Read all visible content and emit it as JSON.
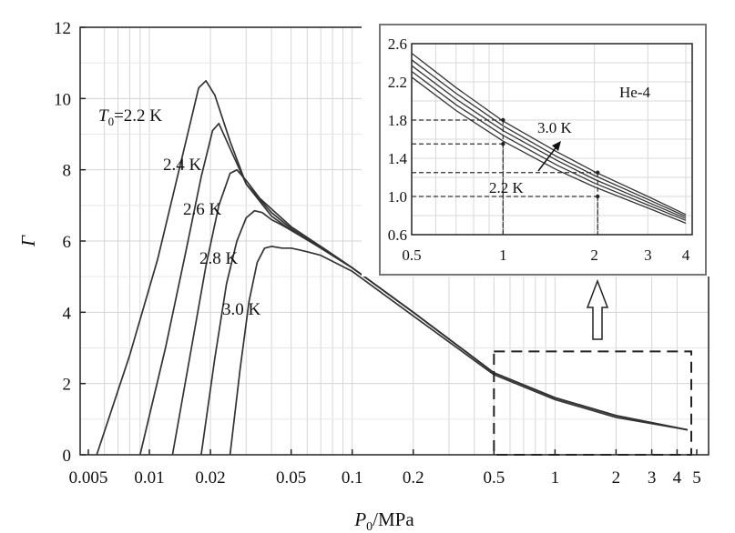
{
  "chart_data": [
    {
      "type": "line",
      "x_scale": "log",
      "xlabel_italic": "P",
      "xlabel_sub": "0",
      "xlabel_rest": "/MPa",
      "ylabel": "Γ",
      "xlim": [
        0.005,
        5
      ],
      "ylim": [
        0,
        12
      ],
      "grid": true,
      "x_ticks": [
        0.005,
        0.01,
        0.02,
        0.05,
        0.1,
        0.2,
        0.5,
        1,
        2,
        3,
        4,
        5
      ],
      "x_tick_labels": [
        "0.005",
        "0.01",
        "0.02",
        "0.05",
        "0.1",
        "0.2",
        "0.5",
        "1",
        "2",
        "3",
        "4",
        "5"
      ],
      "y_ticks": [
        0,
        2,
        4,
        6,
        8,
        10,
        12
      ],
      "y_tick_labels": [
        "0",
        "2",
        "4",
        "6",
        "8",
        "10",
        "12"
      ],
      "series": [
        {
          "name": "T0=2.2 K",
          "label_italic": "T",
          "label_sub": "0",
          "label_rest": "=2.2 K",
          "x": [
            0.0055,
            0.008,
            0.011,
            0.015,
            0.0175,
            0.019,
            0.021,
            0.025,
            0.03,
            0.04,
            0.05,
            0.07,
            0.1,
            0.2,
            0.5,
            1,
            2,
            4.5
          ],
          "y": [
            0,
            2.8,
            5.5,
            8.7,
            10.3,
            10.5,
            10.1,
            8.8,
            7.6,
            6.7,
            6.3,
            5.8,
            5.25,
            4.0,
            2.3,
            1.6,
            1.1,
            0.7
          ]
        },
        {
          "name": "2.4 K",
          "label_rest": "2.4 K",
          "x": [
            0.009,
            0.012,
            0.015,
            0.018,
            0.0205,
            0.022,
            0.025,
            0.03,
            0.04,
            0.05,
            0.07,
            0.1,
            0.2,
            0.5,
            1,
            2,
            4.5
          ],
          "y": [
            0,
            3.0,
            5.6,
            7.8,
            9.1,
            9.3,
            8.6,
            7.6,
            6.8,
            6.35,
            5.8,
            5.25,
            4.0,
            2.3,
            1.6,
            1.1,
            0.7
          ]
        },
        {
          "name": "2.6 K",
          "label_rest": "2.6 K",
          "x": [
            0.013,
            0.016,
            0.019,
            0.022,
            0.025,
            0.027,
            0.03,
            0.035,
            0.04,
            0.05,
            0.07,
            0.1,
            0.2,
            0.5,
            1,
            2,
            4.5
          ],
          "y": [
            0,
            2.9,
            5.3,
            7.0,
            7.9,
            8.0,
            7.7,
            7.2,
            6.9,
            6.4,
            5.85,
            5.25,
            4.0,
            2.3,
            1.6,
            1.1,
            0.7
          ]
        },
        {
          "name": "2.8 K",
          "label_rest": "2.8 K",
          "x": [
            0.018,
            0.021,
            0.024,
            0.027,
            0.03,
            0.033,
            0.036,
            0.04,
            0.045,
            0.05,
            0.07,
            0.1,
            0.2,
            0.5,
            1,
            2,
            4.5
          ],
          "y": [
            0,
            2.7,
            4.8,
            6.0,
            6.65,
            6.85,
            6.8,
            6.6,
            6.45,
            6.3,
            5.85,
            5.25,
            4.0,
            2.3,
            1.6,
            1.1,
            0.7
          ]
        },
        {
          "name": "3.0 K",
          "label_rest": "3.0 K",
          "x": [
            0.025,
            0.028,
            0.031,
            0.034,
            0.037,
            0.04,
            0.045,
            0.05,
            0.055,
            0.06,
            0.07,
            0.1,
            0.2,
            0.5,
            1,
            2,
            4.5
          ],
          "y": [
            0,
            2.4,
            4.3,
            5.4,
            5.8,
            5.85,
            5.8,
            5.8,
            5.75,
            5.7,
            5.6,
            5.15,
            3.9,
            2.25,
            1.55,
            1.05,
            0.7
          ]
        }
      ],
      "zoom_box": {
        "x": [
          0.5,
          4.7
        ],
        "y": [
          0,
          2.9
        ]
      }
    },
    {
      "type": "line",
      "x_scale": "log",
      "title": "He-4",
      "xlim": [
        0.5,
        4.5
      ],
      "ylim": [
        0.6,
        2.6
      ],
      "grid": true,
      "x_ticks": [
        0.5,
        1,
        2,
        3,
        4
      ],
      "x_tick_labels": [
        "0.5",
        "1",
        "2",
        "3",
        "4"
      ],
      "y_ticks": [
        0.6,
        1.0,
        1.4,
        1.8,
        2.2,
        2.6
      ],
      "y_tick_labels": [
        "0.6",
        "1.0",
        "1.4",
        "1.8",
        "2.2",
        "2.6"
      ],
      "series_labels": [
        "2.2 K",
        "3.0 K"
      ],
      "series": [
        {
          "x": [
            0.5,
            0.7,
            1,
            1.5,
            2,
            3,
            4
          ],
          "y": [
            2.25,
            1.9,
            1.58,
            1.28,
            1.1,
            0.88,
            0.72
          ]
        },
        {
          "x": [
            0.5,
            0.7,
            1,
            1.5,
            2,
            3,
            4
          ],
          "y": [
            2.31,
            1.96,
            1.64,
            1.33,
            1.14,
            0.91,
            0.75
          ]
        },
        {
          "x": [
            0.5,
            0.7,
            1,
            1.5,
            2,
            3,
            4
          ],
          "y": [
            2.37,
            2.02,
            1.69,
            1.38,
            1.18,
            0.94,
            0.77
          ]
        },
        {
          "x": [
            0.5,
            0.7,
            1,
            1.5,
            2,
            3,
            4
          ],
          "y": [
            2.43,
            2.08,
            1.74,
            1.42,
            1.22,
            0.97,
            0.79
          ]
        },
        {
          "x": [
            0.5,
            0.7,
            1,
            1.5,
            2,
            3,
            4
          ],
          "y": [
            2.5,
            2.14,
            1.79,
            1.47,
            1.26,
            1.0,
            0.81
          ]
        }
      ],
      "reference_lines": [
        {
          "x": 1,
          "y": 1.8
        },
        {
          "x": 1,
          "y": 1.55
        },
        {
          "x": 2.05,
          "y": 1.25
        },
        {
          "x": 2.05,
          "y": 1.0
        }
      ]
    }
  ]
}
